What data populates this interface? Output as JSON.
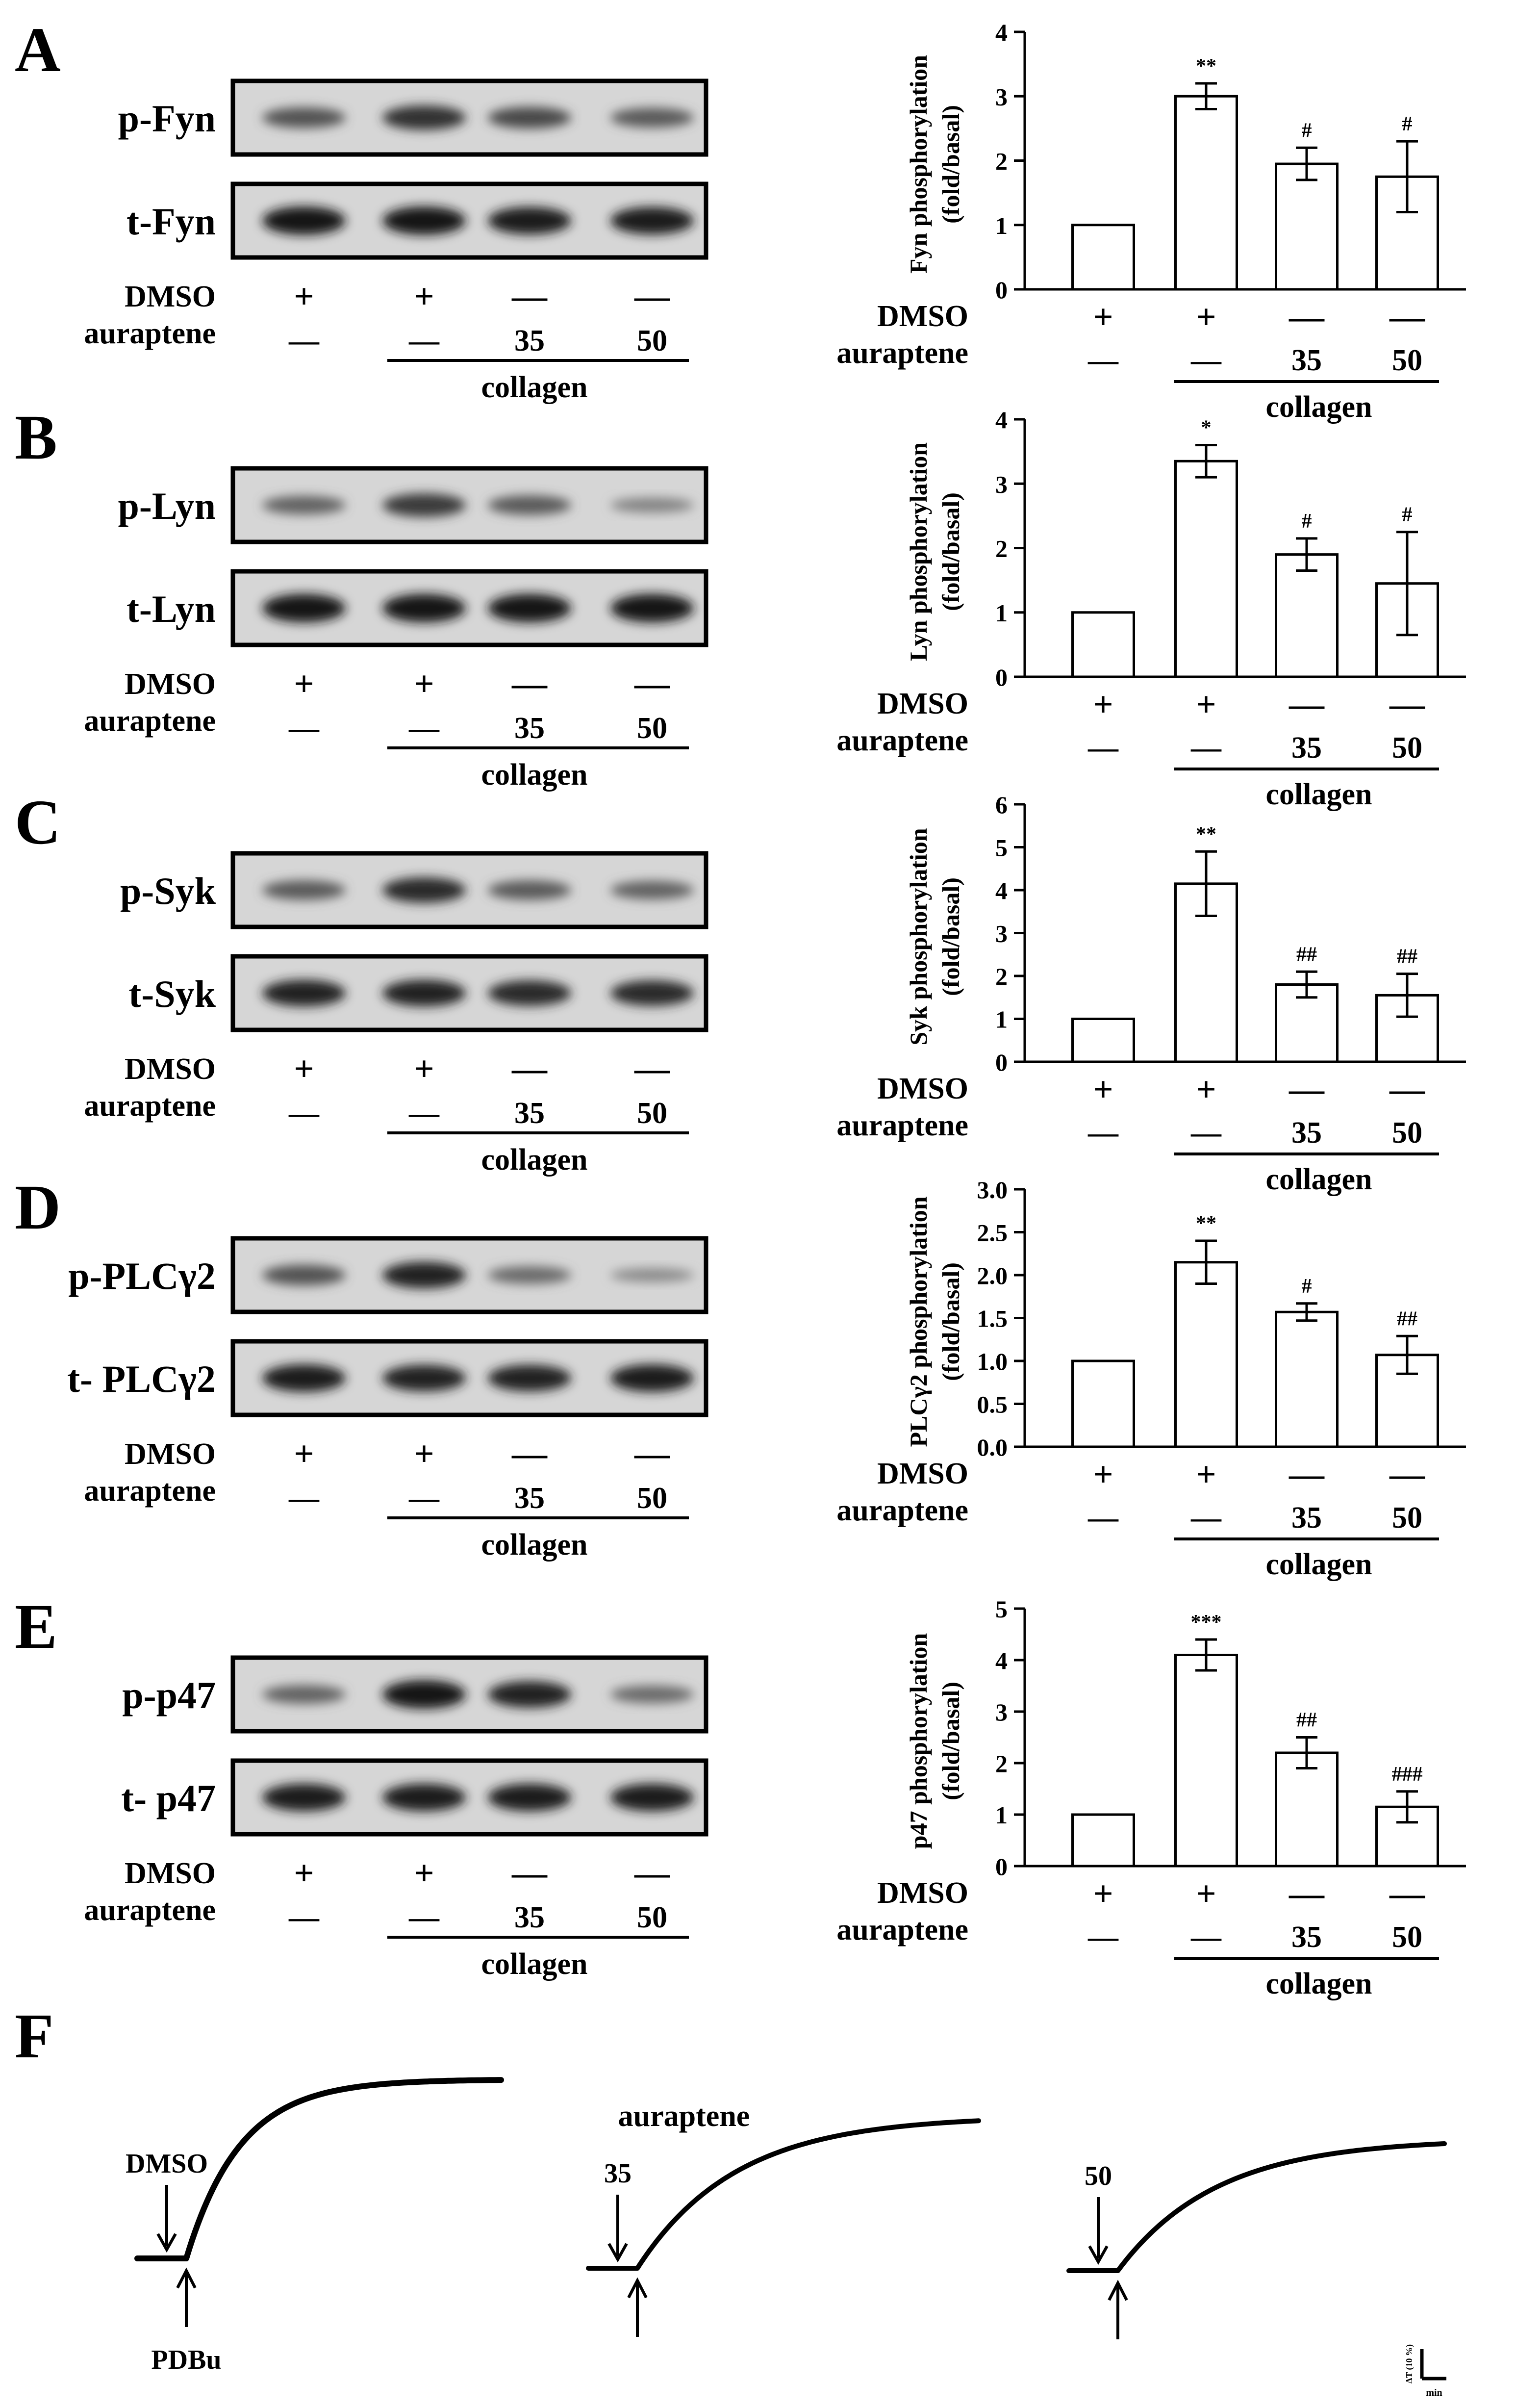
{
  "figure": {
    "panels": [
      {
        "letter": "A",
        "blot_labels": [
          "p-Fyn",
          "t-Fyn"
        ],
        "p_intensity": [
          0.55,
          0.75,
          0.6,
          0.5
        ],
        "t_intensity": [
          0.95,
          0.95,
          0.9,
          0.9
        ],
        "dmso": [
          "+",
          "+",
          "—",
          "—"
        ],
        "auraptene": [
          "—",
          "—",
          "35",
          "50"
        ],
        "row_labels": [
          "DMSO",
          "auraptene"
        ],
        "stim_label": "collagen",
        "chart_data": {
          "type": "bar",
          "ylabel": "Fyn phosphorylation\n(fold/basal)",
          "ylim": [
            0,
            4
          ],
          "yticks": [
            "0",
            "1",
            "2",
            "3",
            "4"
          ],
          "values": [
            1,
            3.0,
            1.95,
            1.75
          ],
          "errors": [
            0,
            0.2,
            0.25,
            0.55
          ],
          "signif": [
            "",
            "**",
            "#",
            "#"
          ]
        }
      },
      {
        "letter": "B",
        "blot_labels": [
          "p-Lyn",
          "t-Lyn"
        ],
        "p_intensity": [
          0.45,
          0.7,
          0.5,
          0.25
        ],
        "t_intensity": [
          0.95,
          0.95,
          0.95,
          0.95
        ],
        "dmso": [
          "+",
          "+",
          "—",
          "—"
        ],
        "auraptene": [
          "—",
          "—",
          "35",
          "50"
        ],
        "row_labels": [
          "DMSO",
          "auraptene"
        ],
        "stim_label": "collagen",
        "chart_data": {
          "type": "bar",
          "ylabel": "Lyn phosphorylation\n(fold/basal)",
          "ylim": [
            0,
            4
          ],
          "yticks": [
            "0",
            "1",
            "2",
            "3",
            "4"
          ],
          "values": [
            1,
            3.35,
            1.9,
            1.45
          ],
          "errors": [
            0,
            0.25,
            0.25,
            0.8
          ],
          "signif": [
            "",
            "*",
            "#",
            "#"
          ]
        }
      },
      {
        "letter": "C",
        "blot_labels": [
          "p-Syk",
          "t-Syk"
        ],
        "p_intensity": [
          0.5,
          0.8,
          0.5,
          0.45
        ],
        "t_intensity": [
          0.85,
          0.85,
          0.8,
          0.8
        ],
        "dmso": [
          "+",
          "+",
          "—",
          "—"
        ],
        "auraptene": [
          "—",
          "—",
          "35",
          "50"
        ],
        "row_labels": [
          "DMSO",
          "auraptene"
        ],
        "stim_label": "collagen",
        "chart_data": {
          "type": "bar",
          "ylabel": "Syk phosphorylation\n(fold/basal)",
          "ylim": [
            0,
            6
          ],
          "yticks": [
            "0",
            "1",
            "2",
            "3",
            "4",
            "5",
            "6"
          ],
          "values": [
            1,
            4.15,
            1.8,
            1.55
          ],
          "errors": [
            0,
            0.75,
            0.3,
            0.5
          ],
          "signif": [
            "",
            "**",
            "##",
            "##"
          ]
        }
      },
      {
        "letter": "D",
        "blot_labels": [
          "p-PLCγ2",
          "t- PLCγ2"
        ],
        "p_intensity": [
          0.55,
          0.85,
          0.4,
          0.2
        ],
        "t_intensity": [
          0.9,
          0.85,
          0.85,
          0.9
        ],
        "dmso": [
          "+",
          "+",
          "—",
          "—"
        ],
        "auraptene": [
          "—",
          "—",
          "35",
          "50"
        ],
        "row_labels": [
          "DMSO",
          "auraptene"
        ],
        "stim_label": "collagen",
        "chart_data": {
          "type": "bar",
          "ylabel": "PLCγ2 phosphorylation\n(fold/basal)",
          "ylim": [
            0,
            3
          ],
          "yticks": [
            "0.0",
            "0.5",
            "1.0",
            "1.5",
            "2.0",
            "2.5",
            "3.0"
          ],
          "values": [
            1,
            2.15,
            1.57,
            1.07
          ],
          "errors": [
            0,
            0.25,
            0.1,
            0.22
          ],
          "signif": [
            "",
            "**",
            "#",
            "##"
          ]
        }
      },
      {
        "letter": "E",
        "blot_labels": [
          "p-p47",
          "t- p47"
        ],
        "p_intensity": [
          0.45,
          0.95,
          0.85,
          0.4
        ],
        "t_intensity": [
          0.9,
          0.9,
          0.9,
          0.9
        ],
        "dmso": [
          "+",
          "+",
          "—",
          "—"
        ],
        "auraptene": [
          "—",
          "—",
          "35",
          "50"
        ],
        "row_labels": [
          "DMSO",
          "auraptene"
        ],
        "stim_label": "collagen",
        "chart_data": {
          "type": "bar",
          "ylabel": "p47 phosphorylation\n(fold/basal)",
          "ylim": [
            0,
            5
          ],
          "yticks": [
            "0",
            "1",
            "2",
            "3",
            "4",
            "5"
          ],
          "values": [
            1,
            4.1,
            2.2,
            1.15
          ],
          "errors": [
            0,
            0.3,
            0.3,
            0.3
          ],
          "signif": [
            "",
            "***",
            "##",
            "###"
          ]
        }
      }
    ],
    "panelF": {
      "letter": "F",
      "treat_header": "auraptene",
      "traces": [
        {
          "label": "DMSO",
          "stim": "PDBu",
          "plateau": 1.0
        },
        {
          "label": "35",
          "stim": "",
          "plateau": 0.85
        },
        {
          "label": "50",
          "stim": "",
          "plateau": 0.79
        }
      ],
      "scale_label": "ΔT (10 %)",
      "scale_unit": "min"
    }
  }
}
